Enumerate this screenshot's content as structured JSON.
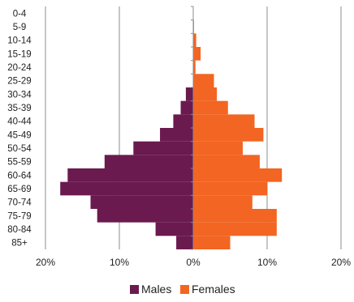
{
  "chart_data": {
    "type": "bar",
    "orientation": "horizontal",
    "layout": "population-pyramid",
    "title": "",
    "xlabel": "",
    "ylabel": "",
    "categories": [
      "0-4",
      "5-9",
      "10-14",
      "15-19",
      "20-24",
      "25-29",
      "30-34",
      "35-39",
      "40-44",
      "45-49",
      "50-54",
      "55-59",
      "60-64",
      "65-69",
      "70-74",
      "75-79",
      "80-84",
      "85+"
    ],
    "series": [
      {
        "name": "Males",
        "color": "#6b1a4f",
        "side": "left",
        "values": [
          0,
          0,
          0,
          0,
          0,
          0,
          1.0,
          1.7,
          2.7,
          4.5,
          8.1,
          12.0,
          17.0,
          18.0,
          13.9,
          13.0,
          5.1,
          2.3
        ]
      },
      {
        "name": "Females",
        "color": "#f26522",
        "side": "right",
        "values": [
          0,
          0.1,
          0.4,
          1.0,
          0.3,
          2.8,
          3.2,
          4.7,
          8.3,
          9.5,
          6.7,
          9.0,
          12.0,
          10.0,
          8.0,
          11.3,
          11.3,
          5.0
        ]
      }
    ],
    "xlim": [
      -20,
      20
    ],
    "xticks": [
      -20,
      -10,
      0,
      10,
      20
    ],
    "xtick_labels": [
      "20%",
      "10%",
      "0%",
      "10%",
      "20%"
    ],
    "grid": "vertical",
    "legend": "bottom"
  }
}
